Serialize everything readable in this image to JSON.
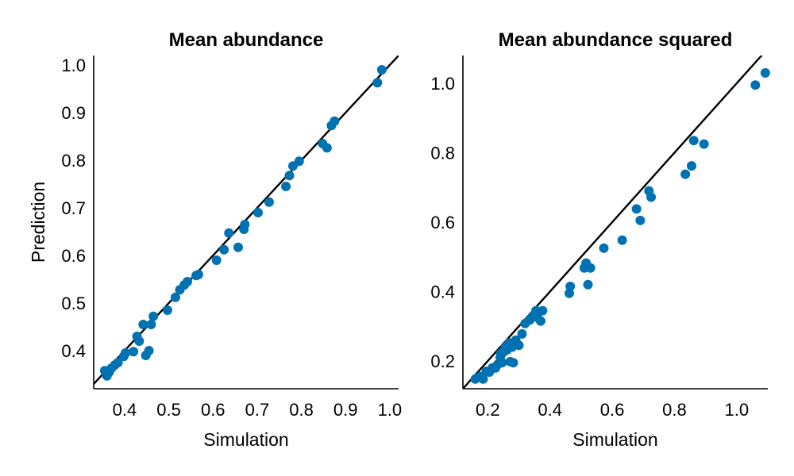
{
  "chart_data": [
    {
      "type": "scatter",
      "title": "Mean abundance",
      "xlabel": "Simulation",
      "ylabel": "Prediction",
      "xlim": [
        0.33,
        1.02
      ],
      "ylim": [
        0.32,
        1.02
      ],
      "xticks": [
        0.4,
        0.5,
        0.6,
        0.7,
        0.8,
        0.9,
        1.0
      ],
      "xtick_labels": [
        "0.4",
        "0.5",
        "0.6",
        "0.7",
        "0.8",
        "0.9",
        "1.0"
      ],
      "yticks": [
        0.4,
        0.5,
        0.6,
        0.7,
        0.8,
        0.9,
        1.0
      ],
      "ytick_labels": [
        "0.4",
        "0.5",
        "0.6",
        "0.7",
        "0.8",
        "0.9",
        "1.0"
      ],
      "reference_line": "y = x",
      "marker_color": "#0072b2",
      "points": [
        [
          0.355,
          0.358
        ],
        [
          0.36,
          0.347
        ],
        [
          0.365,
          0.355
        ],
        [
          0.37,
          0.363
        ],
        [
          0.378,
          0.37
        ],
        [
          0.385,
          0.375
        ],
        [
          0.398,
          0.388
        ],
        [
          0.402,
          0.395
        ],
        [
          0.42,
          0.398
        ],
        [
          0.428,
          0.43
        ],
        [
          0.433,
          0.42
        ],
        [
          0.442,
          0.455
        ],
        [
          0.448,
          0.39
        ],
        [
          0.455,
          0.4
        ],
        [
          0.46,
          0.455
        ],
        [
          0.465,
          0.472
        ],
        [
          0.497,
          0.485
        ],
        [
          0.515,
          0.512
        ],
        [
          0.525,
          0.528
        ],
        [
          0.535,
          0.538
        ],
        [
          0.542,
          0.545
        ],
        [
          0.562,
          0.558
        ],
        [
          0.567,
          0.56
        ],
        [
          0.608,
          0.59
        ],
        [
          0.625,
          0.612
        ],
        [
          0.636,
          0.647
        ],
        [
          0.657,
          0.617
        ],
        [
          0.67,
          0.655
        ],
        [
          0.672,
          0.665
        ],
        [
          0.702,
          0.69
        ],
        [
          0.727,
          0.712
        ],
        [
          0.765,
          0.745
        ],
        [
          0.773,
          0.768
        ],
        [
          0.781,
          0.788
        ],
        [
          0.795,
          0.798
        ],
        [
          0.848,
          0.835
        ],
        [
          0.858,
          0.826
        ],
        [
          0.868,
          0.873
        ],
        [
          0.875,
          0.882
        ],
        [
          0.972,
          0.963
        ],
        [
          0.982,
          0.99
        ]
      ]
    },
    {
      "type": "scatter",
      "title": "Mean abundance squared",
      "xlabel": "Simulation",
      "ylabel": "",
      "xlim": [
        0.12,
        1.1
      ],
      "ylim": [
        0.12,
        1.08
      ],
      "xticks": [
        0.2,
        0.4,
        0.6,
        0.8,
        1.0
      ],
      "xtick_labels": [
        "0.2",
        "0.4",
        "0.6",
        "0.8",
        "1.0"
      ],
      "yticks": [
        0.2,
        0.4,
        0.6,
        0.8,
        1.0
      ],
      "ytick_labels": [
        "0.2",
        "0.4",
        "0.6",
        "0.8",
        "1.0"
      ],
      "reference_line": "y = x",
      "marker_color": "#0072b2",
      "points": [
        [
          0.16,
          0.148
        ],
        [
          0.175,
          0.155
        ],
        [
          0.185,
          0.148
        ],
        [
          0.195,
          0.17
        ],
        [
          0.205,
          0.168
        ],
        [
          0.215,
          0.18
        ],
        [
          0.225,
          0.18
        ],
        [
          0.232,
          0.19
        ],
        [
          0.24,
          0.21
        ],
        [
          0.242,
          0.222
        ],
        [
          0.246,
          0.195
        ],
        [
          0.25,
          0.225
        ],
        [
          0.256,
          0.24
        ],
        [
          0.262,
          0.232
        ],
        [
          0.268,
          0.252
        ],
        [
          0.272,
          0.198
        ],
        [
          0.278,
          0.24
        ],
        [
          0.282,
          0.195
        ],
        [
          0.29,
          0.26
        ],
        [
          0.3,
          0.245
        ],
        [
          0.31,
          0.278
        ],
        [
          0.32,
          0.308
        ],
        [
          0.335,
          0.318
        ],
        [
          0.345,
          0.33
        ],
        [
          0.355,
          0.345
        ],
        [
          0.36,
          0.325
        ],
        [
          0.37,
          0.315
        ],
        [
          0.376,
          0.345
        ],
        [
          0.462,
          0.395
        ],
        [
          0.465,
          0.415
        ],
        [
          0.51,
          0.468
        ],
        [
          0.516,
          0.482
        ],
        [
          0.522,
          0.42
        ],
        [
          0.53,
          0.468
        ],
        [
          0.573,
          0.525
        ],
        [
          0.632,
          0.548
        ],
        [
          0.678,
          0.638
        ],
        [
          0.69,
          0.605
        ],
        [
          0.718,
          0.69
        ],
        [
          0.725,
          0.672
        ],
        [
          0.835,
          0.738
        ],
        [
          0.855,
          0.762
        ],
        [
          0.862,
          0.835
        ],
        [
          0.895,
          0.825
        ],
        [
          1.06,
          0.995
        ],
        [
          1.092,
          1.03
        ]
      ]
    }
  ]
}
